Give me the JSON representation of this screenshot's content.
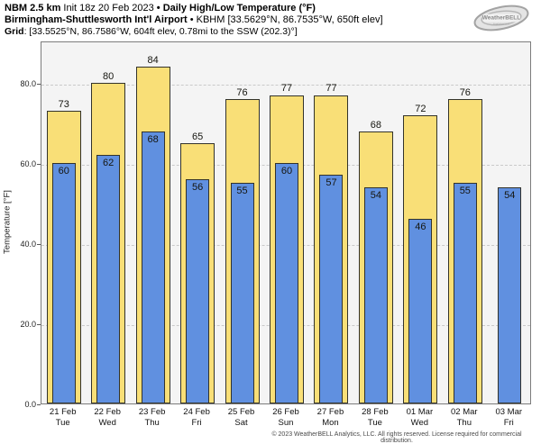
{
  "header": {
    "line1_bold": "NBM 2.5 km",
    "line1_normal": " Init 18z 20 Feb 2023 ",
    "line1_bold2": "• Daily High/Low Temperature (°F)",
    "line2_bold": "Birmingham-Shuttlesworth Int'l Airport",
    "line2_normal": " • KBHM [33.5629°N, 86.7535°W, 650ft elev]",
    "line3_bold": "Grid",
    "line3_normal": ": [33.5525°N, 86.7586°W, 604ft elev, 0.78mi to the SSW (202.3)°]"
  },
  "logo": {
    "name": "WeatherBELL",
    "sub": "Analytics LLC"
  },
  "footer": {
    "copyright": "© 2023 WeatherBELL Analytics, LLC. All rights reserved. License required for commercial distribution."
  },
  "chart_data": {
    "type": "bar",
    "title": "NBM 2.5 km Daily High/Low Temperature (°F) — KBHM Birmingham-Shuttlesworth Int'l Airport",
    "xlabel": "",
    "ylabel": "Temperature [°F]",
    "ylim": [
      0,
      90.6
    ],
    "yticks": [
      0,
      20,
      40,
      60,
      80
    ],
    "ytick_labels": [
      "0.0",
      "20.0",
      "40.0",
      "60.0",
      "80.0"
    ],
    "grid": "horizontal-dashed",
    "legend_position": "none",
    "plot_bg": "#f4f4f4",
    "high_color": "#f9df77",
    "low_color": "#6090e0",
    "bar_border_color": "#33332b",
    "categories": [
      {
        "date": "21 Feb",
        "weekday": "Tue"
      },
      {
        "date": "22 Feb",
        "weekday": "Wed"
      },
      {
        "date": "23 Feb",
        "weekday": "Thu"
      },
      {
        "date": "24 Feb",
        "weekday": "Fri"
      },
      {
        "date": "25 Feb",
        "weekday": "Sat"
      },
      {
        "date": "26 Feb",
        "weekday": "Sun"
      },
      {
        "date": "27 Feb",
        "weekday": "Mon"
      },
      {
        "date": "28 Feb",
        "weekday": "Tue"
      },
      {
        "date": "01 Mar",
        "weekday": "Wed"
      },
      {
        "date": "02 Mar",
        "weekday": "Thu"
      },
      {
        "date": "03 Mar",
        "weekday": "Fri"
      }
    ],
    "series": [
      {
        "name": "Daily High",
        "color": "#f9df77",
        "values": [
          73,
          80,
          84,
          65,
          76,
          77,
          77,
          68,
          72,
          76,
          null
        ]
      },
      {
        "name": "Daily Low",
        "color": "#6090e0",
        "values": [
          60,
          62,
          68,
          56,
          55,
          60,
          57,
          54,
          46,
          55,
          54
        ]
      }
    ]
  }
}
